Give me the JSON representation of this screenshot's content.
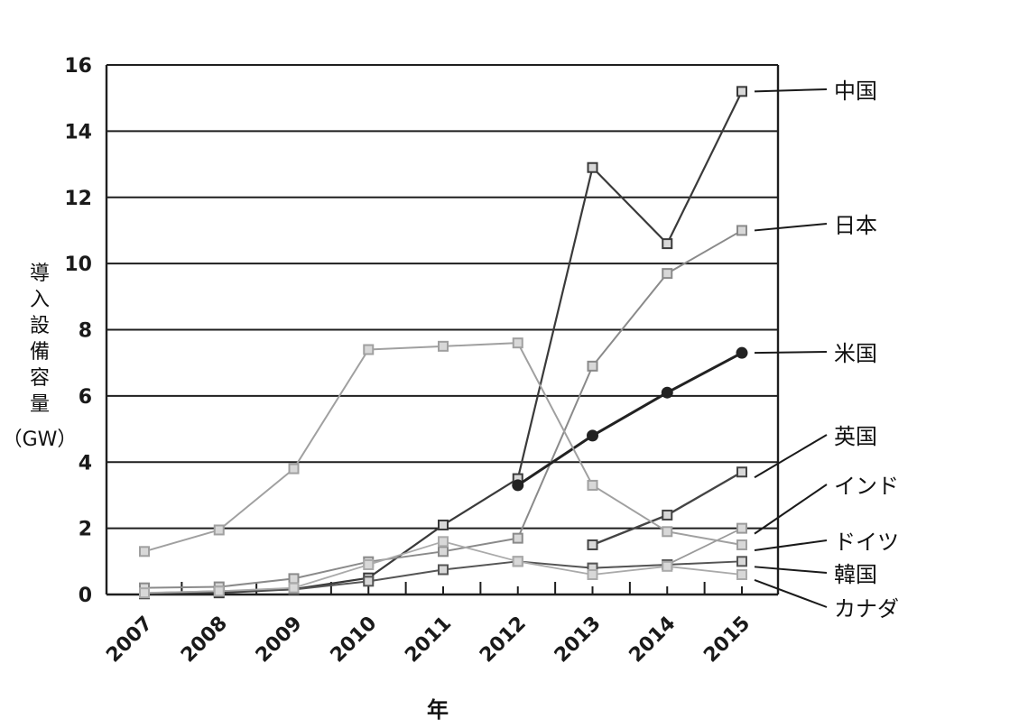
{
  "chart_data": {
    "type": "line",
    "xlabel": "年",
    "ylabel_chars": [
      "導",
      "入",
      "設",
      "備",
      "容",
      "量"
    ],
    "ylabel_unit": "（GW）",
    "xlim": [
      2007,
      2015
    ],
    "ylim": [
      0,
      16
    ],
    "yticks": [
      0,
      2,
      4,
      6,
      8,
      10,
      12,
      14,
      16
    ],
    "x": [
      2007,
      2008,
      2009,
      2010,
      2011,
      2012,
      2013,
      2014,
      2015
    ],
    "grid": "horizontal",
    "legend_placement": "right, direct labels",
    "series": [
      {
        "name": "中国",
        "color": "#3a3a3a",
        "marker": "square",
        "width": 2.2,
        "values": [
          0.02,
          0.05,
          0.16,
          0.5,
          2.1,
          3.5,
          12.9,
          10.6,
          15.2
        ]
      },
      {
        "name": "日本",
        "color": "#8a8a8a",
        "marker": "square",
        "width": 2,
        "values": [
          0.2,
          0.23,
          0.48,
          0.99,
          1.3,
          1.7,
          6.9,
          9.7,
          11.0
        ]
      },
      {
        "name": "米国",
        "color": "#222222",
        "marker": "circle",
        "width": 3,
        "values": [
          null,
          null,
          null,
          null,
          null,
          3.3,
          4.8,
          6.1,
          7.3
        ]
      },
      {
        "name": "英国",
        "color": "#444444",
        "marker": "square",
        "width": 2.4,
        "values": [
          null,
          null,
          null,
          null,
          null,
          null,
          1.5,
          2.4,
          3.7
        ]
      },
      {
        "name": "インド",
        "color": "#9a9a9a",
        "marker": "square",
        "width": 1.8,
        "values": [
          null,
          null,
          null,
          null,
          null,
          null,
          0.8,
          0.9,
          2.0
        ]
      },
      {
        "name": "ドイツ",
        "color": "#a0a0a0",
        "marker": "square",
        "width": 2,
        "values": [
          1.3,
          1.95,
          3.8,
          7.4,
          7.5,
          7.6,
          3.3,
          1.9,
          1.5
        ]
      },
      {
        "name": "韓国",
        "color": "#555555",
        "marker": "square",
        "width": 2,
        "values": [
          0.04,
          0.1,
          0.15,
          0.4,
          0.75,
          1.0,
          0.8,
          0.9,
          1.0
        ]
      },
      {
        "name": "カナダ",
        "color": "#aaaaaa",
        "marker": "square",
        "width": 1.8,
        "values": [
          0.05,
          0.1,
          0.2,
          0.9,
          1.6,
          1.0,
          0.6,
          0.85,
          0.6
        ]
      }
    ]
  }
}
